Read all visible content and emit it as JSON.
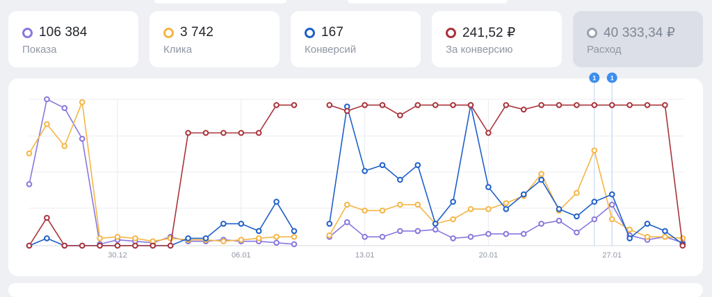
{
  "metrics": [
    {
      "value": "106 384",
      "label": "Показа",
      "color": "#8877dd",
      "active": true
    },
    {
      "value": "3 742",
      "label": "Клика",
      "color": "#f5b544",
      "active": true
    },
    {
      "value": "167",
      "label": "Конверсий",
      "color": "#1e5fc9",
      "active": true
    },
    {
      "value": "241,52 ₽",
      "label": "За конверсию",
      "color": "#a83239",
      "active": true
    },
    {
      "value": "40 333,34 ₽",
      "label": "Расход",
      "color": "#9aa1ad",
      "active": false
    }
  ],
  "chart_data": {
    "type": "line",
    "x_tick_labels": [
      "30.12",
      "06.01",
      "13.01",
      "20.01",
      "27.01"
    ],
    "y_range": [
      0,
      100
    ],
    "grid": true,
    "annotations": [
      "1",
      "1"
    ],
    "series": [
      {
        "color": "#8877dd",
        "values": [
          42,
          100,
          94,
          73,
          1,
          4,
          3,
          2,
          6,
          3,
          3,
          4,
          3,
          3,
          2,
          1,
          null,
          6,
          16,
          6,
          6,
          10,
          10,
          11,
          5,
          6,
          8,
          8,
          8,
          15,
          17,
          9,
          18,
          28,
          7,
          4,
          6,
          2
        ]
      },
      {
        "color": "#f5b544",
        "values": [
          63,
          83,
          68,
          98,
          5,
          6,
          5,
          3,
          5,
          4,
          4,
          3,
          4,
          5,
          6,
          6,
          null,
          7,
          28,
          24,
          24,
          28,
          28,
          15,
          18,
          25,
          25,
          29,
          34,
          49,
          24,
          36,
          65,
          18,
          11,
          6,
          6,
          5
        ]
      },
      {
        "color": "#1e5fc9",
        "values": [
          0,
          5,
          0,
          0,
          0,
          0,
          0,
          0,
          0,
          5,
          5,
          15,
          15,
          10,
          30,
          10,
          null,
          15,
          95,
          51,
          55,
          45,
          55,
          15,
          30,
          96,
          40,
          25,
          35,
          45,
          25,
          20,
          30,
          35,
          5,
          15,
          10,
          1
        ]
      },
      {
        "color": "#a83239",
        "values": [
          0,
          19,
          0,
          0,
          0,
          0,
          0,
          0,
          0,
          77,
          77,
          77,
          77,
          77,
          96,
          96,
          null,
          96,
          92,
          96,
          96,
          89,
          96,
          96,
          96,
          96,
          77,
          96,
          93,
          96,
          96,
          96,
          96,
          96,
          96,
          96,
          96,
          0
        ]
      }
    ]
  }
}
